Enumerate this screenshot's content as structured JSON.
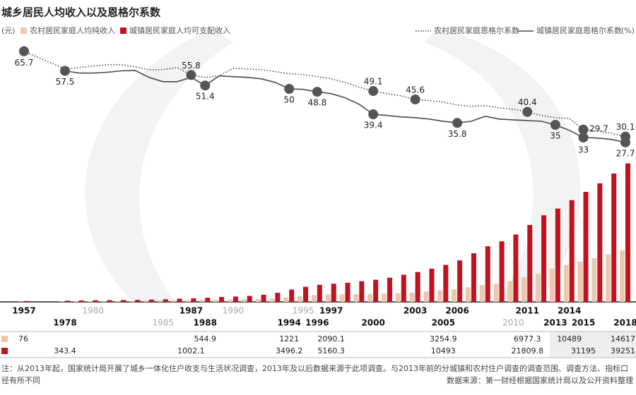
{
  "chart_data": {
    "type": "bar",
    "title": "城乡居民人均收入以及恩格尔系数",
    "y_label": "(元)",
    "y2_label": "(%)",
    "note": "注：从2013年起，国家统计局开展了城乡一体化住户收支与生活状况调查，2013年及以后数据来源于此项调查。与2013年前的分城镇和农村住户调查的调查范围、调查方法、指标口径有所不同",
    "source": "数据来源：第一财经根据国家统计局以及公开资料整理",
    "categories": [
      "1957",
      "1978",
      null,
      "1980",
      null,
      null,
      null,
      null,
      "1985",
      null,
      "1987",
      "1988",
      null,
      "1990",
      null,
      null,
      null,
      "1994",
      "1995",
      "1996",
      "1997",
      null,
      null,
      "2000",
      null,
      null,
      "2003",
      null,
      "2005",
      "2006",
      null,
      null,
      null,
      "2010",
      "2011",
      null,
      "2013",
      "2014",
      "2015",
      null,
      null,
      "2018"
    ],
    "ylim": [
      0,
      40000
    ],
    "y2lim": [
      20,
      75
    ],
    "grid": false,
    "series": [
      {
        "name": "农村居民家庭人均纯收入",
        "type": "bar",
        "color": "#e9c8ae",
        "values": [
          76,
          133.6,
          160.2,
          191.3,
          223.4,
          270.1,
          309.8,
          355.3,
          397.6,
          423.8,
          462.6,
          544.9,
          601.5,
          686.3,
          708.6,
          784,
          921.6,
          1221,
          1577.7,
          1926.1,
          2090.1,
          2162,
          2210.3,
          2253.4,
          2366.4,
          2475.6,
          2622.2,
          2936.4,
          3254.9,
          3587,
          4140.4,
          4760.6,
          5153.2,
          5919,
          6977.3,
          7916.6,
          9430,
          10489,
          11422,
          12363,
          13432,
          14617
        ],
        "value_labels": [
          "76",
          null,
          null,
          null,
          null,
          null,
          null,
          null,
          null,
          null,
          null,
          "544.9",
          null,
          null,
          null,
          null,
          null,
          "1221",
          null,
          null,
          "2090.1",
          null,
          null,
          null,
          null,
          null,
          null,
          null,
          "3254.9",
          null,
          null,
          null,
          null,
          null,
          "6977.3",
          null,
          null,
          "10489",
          null,
          null,
          null,
          "14617"
        ]
      },
      {
        "name": "城镇居民家庭人均可支配收入",
        "type": "bar",
        "color": "#c0121f",
        "values": [
          254,
          343.4,
          405,
          477.6,
          500.4,
          535.3,
          564.6,
          652.1,
          739.1,
          900.9,
          1002.1,
          1180.2,
          1373.9,
          1510.2,
          1700.6,
          2026.6,
          2577.4,
          3496.2,
          4283,
          4838.9,
          5160.3,
          5425.1,
          5854,
          6280,
          6859.6,
          7702.8,
          8472.2,
          9421.6,
          10493,
          11759.5,
          13785.8,
          15780.8,
          17174.7,
          19109.4,
          21809.8,
          24564.7,
          26467,
          28844,
          31195,
          33616,
          36396,
          39251
        ],
        "value_labels": [
          null,
          "343.4",
          null,
          null,
          null,
          null,
          null,
          null,
          null,
          null,
          "1002.1",
          null,
          null,
          null,
          null,
          null,
          null,
          "3496.2",
          null,
          null,
          "5160.3",
          null,
          null,
          null,
          null,
          null,
          null,
          null,
          "10493",
          null,
          null,
          null,
          null,
          null,
          "21809.8",
          null,
          null,
          null,
          "31195",
          null,
          null,
          "39251"
        ]
      },
      {
        "name": "农村居民家庭恩格尔系数",
        "type": "line",
        "axis": "y2",
        "style": "dotted",
        "color": "#4a4a4a",
        "values": [
          65.7,
          58.3,
          58.9,
          59.5,
          60.1,
          60.1,
          59.2,
          58,
          58,
          58.9,
          55.8,
          54.8,
          55.4,
          58.6,
          58.3,
          58,
          57.2,
          56.3,
          56,
          55.1,
          54.2,
          52.7,
          50.7,
          49.1,
          48,
          47.1,
          45.6,
          45.1,
          44.5,
          43.3,
          42.7,
          43,
          42.1,
          41.5,
          40.4,
          38.9,
          38,
          37.7,
          33,
          32.4,
          31.5,
          30.1
        ],
        "value_labels": [
          "65.7",
          null,
          null,
          null,
          null,
          null,
          null,
          null,
          null,
          null,
          "55.8",
          null,
          null,
          null,
          null,
          null,
          null,
          null,
          null,
          null,
          null,
          null,
          null,
          "49.1",
          null,
          null,
          "45.6",
          null,
          null,
          null,
          null,
          null,
          null,
          null,
          "40.4",
          null,
          null,
          null,
          "33",
          null,
          null,
          "30.1"
        ]
      },
      {
        "name": "城镇居民家庭恩格尔系数",
        "type": "line",
        "axis": "y2",
        "style": "solid",
        "color": "#4a4a4a",
        "values": [
          null,
          57.5,
          56.6,
          56.6,
          56.9,
          57.5,
          57.7,
          54.8,
          53,
          53,
          54.8,
          51.4,
          55.4,
          55.1,
          54.8,
          54.2,
          52.7,
          50,
          49.8,
          48.8,
          48,
          46.3,
          43.6,
          39.4,
          38.9,
          38.3,
          38,
          37.4,
          36.5,
          35.8,
          36.5,
          38.6,
          37.4,
          37.1,
          36.8,
          36.5,
          35,
          32.7,
          29.7,
          29.5,
          28.9,
          27.7
        ],
        "value_labels": [
          null,
          "57.5",
          null,
          null,
          null,
          null,
          null,
          null,
          null,
          null,
          null,
          "51.4",
          null,
          null,
          null,
          null,
          null,
          "50",
          null,
          "48.8",
          null,
          null,
          null,
          "39.4",
          null,
          null,
          null,
          null,
          null,
          "35.8",
          null,
          null,
          null,
          null,
          null,
          null,
          "35",
          null,
          "29.7",
          null,
          null,
          "27.7"
        ]
      }
    ]
  }
}
